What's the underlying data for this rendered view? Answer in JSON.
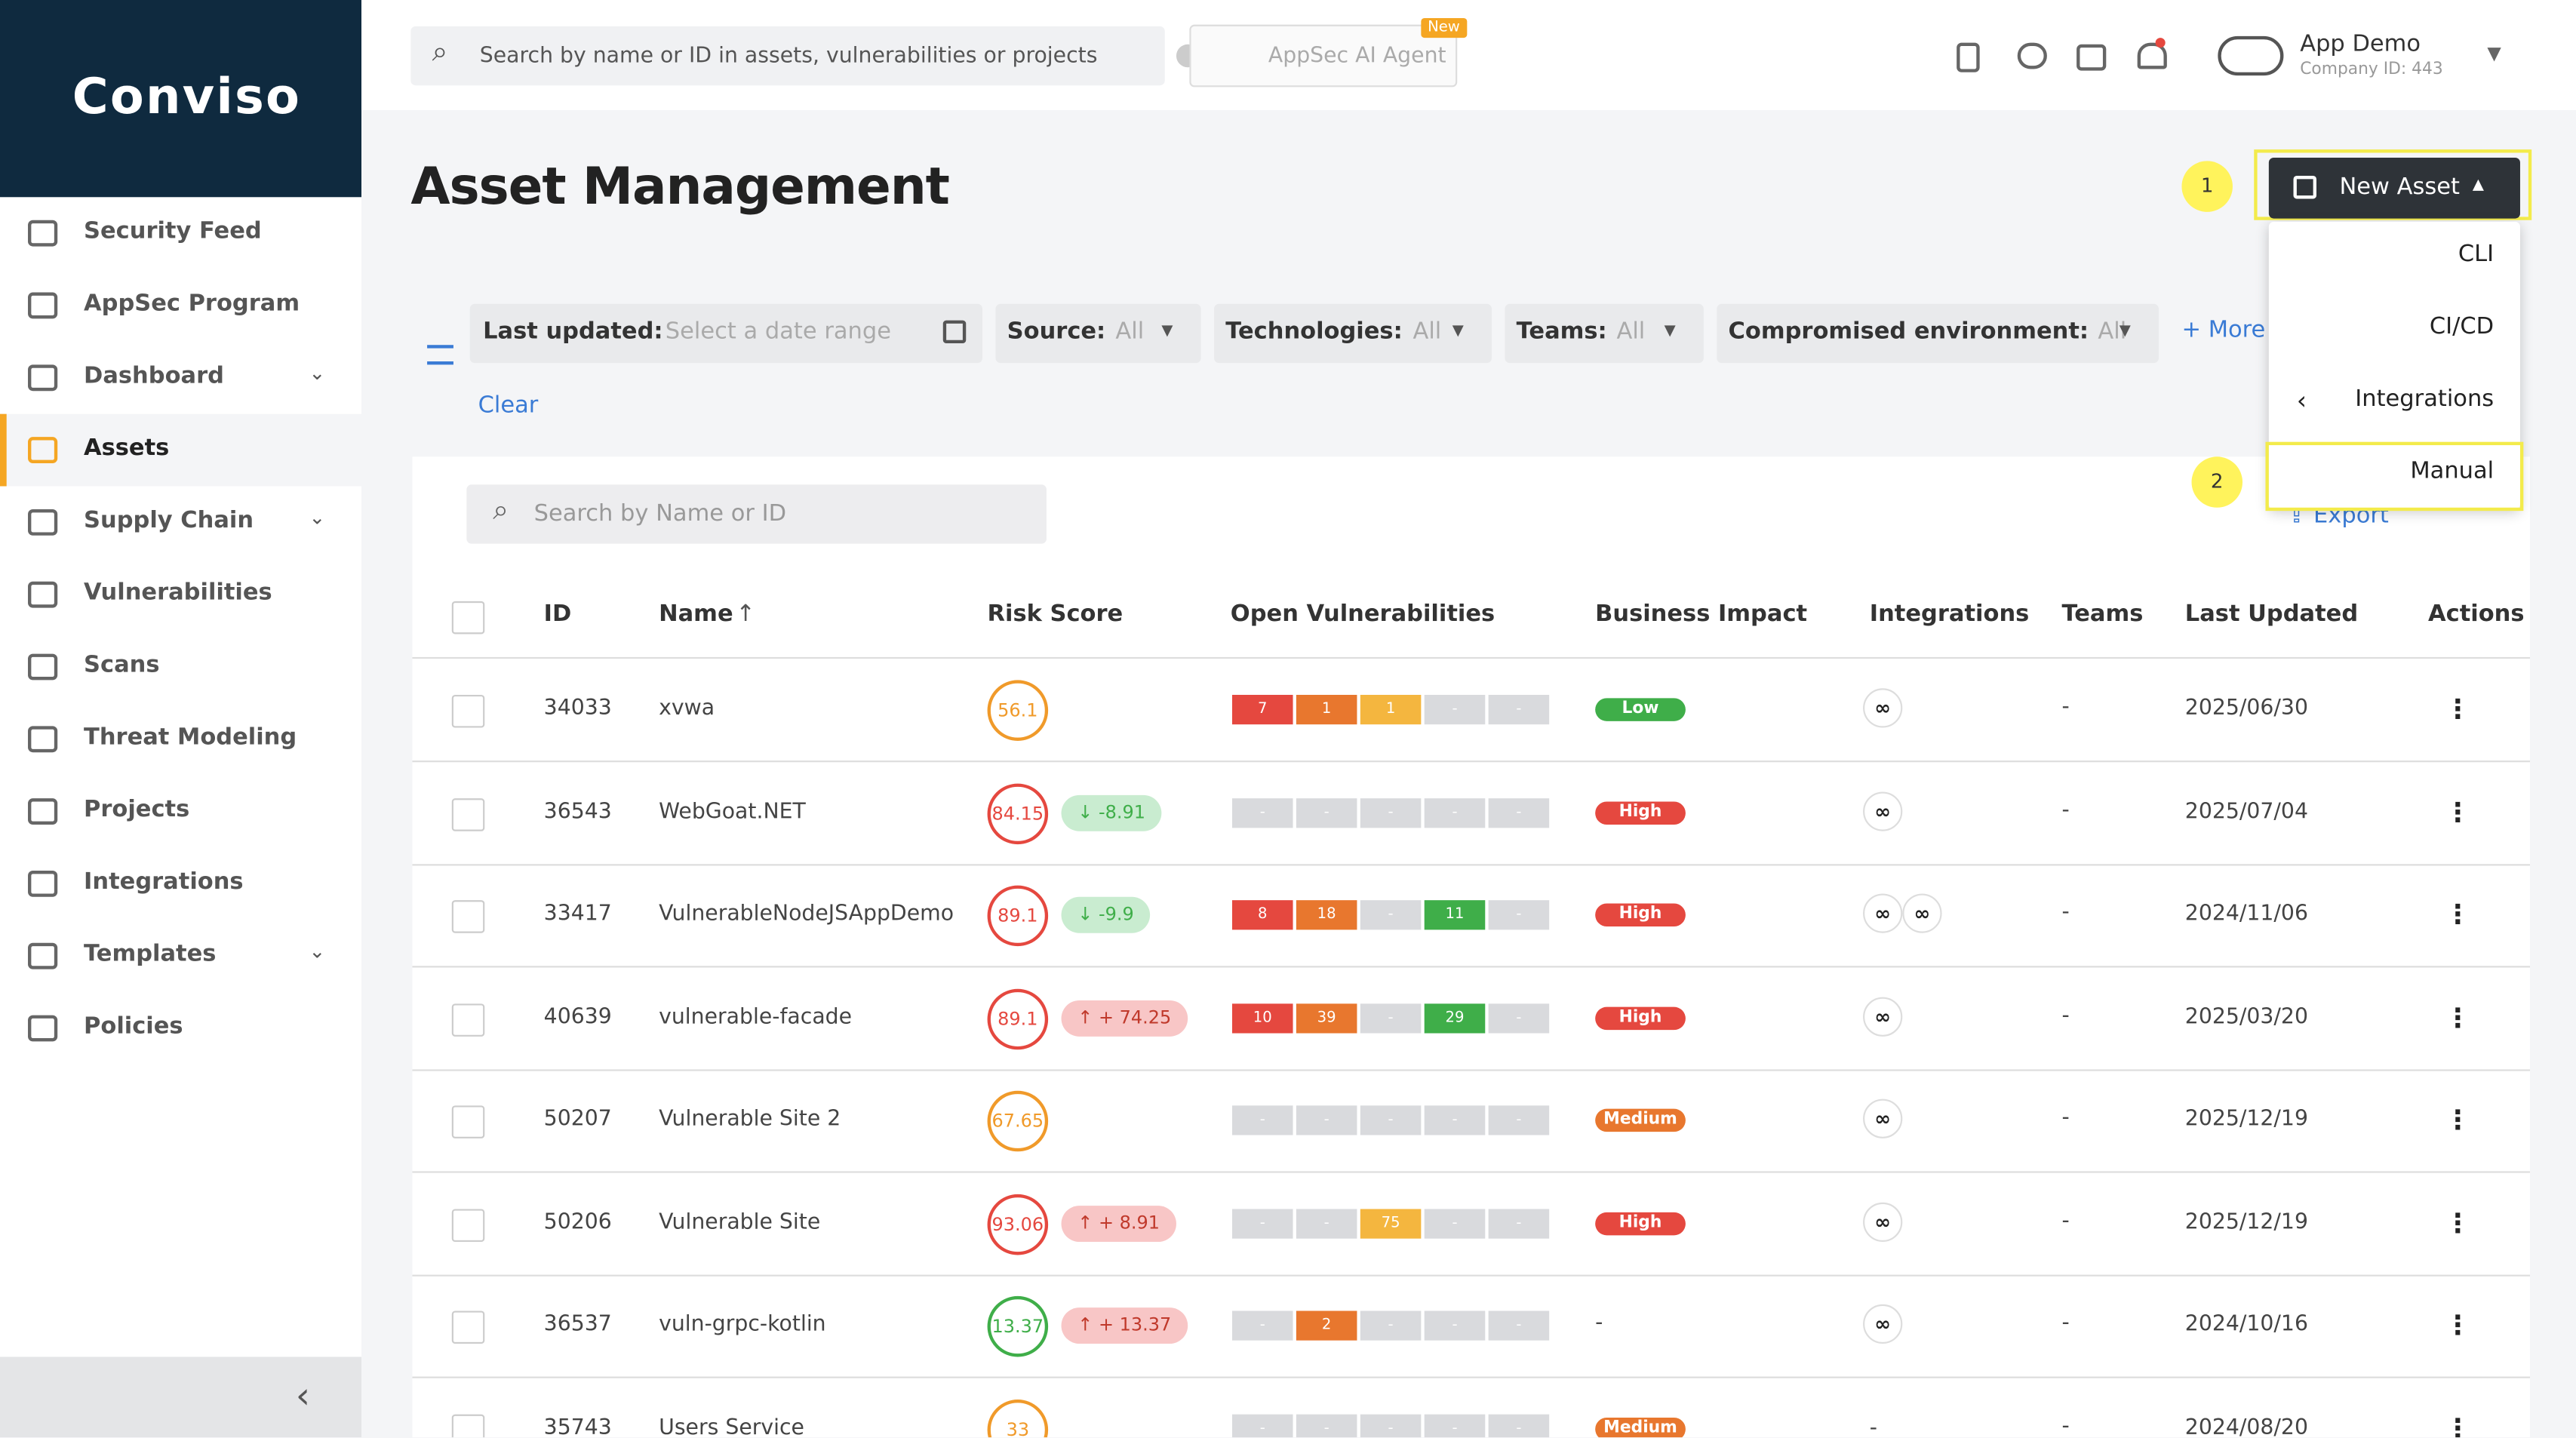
{
  "logo": "Conviso",
  "topbar": {
    "search_placeholder": "Search by name or ID in assets, vulnerabilities or projects",
    "ai_agent": "AppSec AI Agent",
    "ai_badge": "New",
    "user_name": "App Demo",
    "company": "Company ID: 443"
  },
  "sidebar": {
    "items": [
      {
        "label": "Security Feed",
        "expandable": false,
        "active": false
      },
      {
        "label": "AppSec Program",
        "expandable": false,
        "active": false
      },
      {
        "label": "Dashboard",
        "expandable": true,
        "active": false
      },
      {
        "label": "Assets",
        "expandable": false,
        "active": true
      },
      {
        "label": "Supply Chain",
        "expandable": true,
        "active": false
      },
      {
        "label": "Vulnerabilities",
        "expandable": false,
        "active": false
      },
      {
        "label": "Scans",
        "expandable": false,
        "active": false
      },
      {
        "label": "Threat Modeling",
        "expandable": false,
        "active": false
      },
      {
        "label": "Projects",
        "expandable": false,
        "active": false
      },
      {
        "label": "Integrations",
        "expandable": false,
        "active": false
      },
      {
        "label": "Templates",
        "expandable": true,
        "active": false
      },
      {
        "label": "Policies",
        "expandable": false,
        "active": false
      }
    ]
  },
  "page": {
    "title": "Asset Management",
    "new_asset": "New Asset",
    "annotation_1": "1",
    "annotation_2": "2",
    "dropdown": [
      "CLI",
      "CI/CD",
      "Integrations",
      "Manual"
    ]
  },
  "filters": {
    "last_updated": "Last updated:",
    "date_placeholder": "Select a date range",
    "selects": [
      {
        "label": "Source:",
        "value": "All"
      },
      {
        "label": "Technologies:",
        "value": "All"
      },
      {
        "label": "Teams:",
        "value": "All"
      },
      {
        "label": "Compromised environment:",
        "value": "All"
      }
    ],
    "more": "More",
    "clear": "Clear"
  },
  "table": {
    "search_placeholder": "Search by Name or ID",
    "export": "Export",
    "columns": [
      "ID",
      "Name",
      "Risk Score",
      "Open Vulnerabilities",
      "Business Impact",
      "Integrations",
      "Teams",
      "Last Updated",
      "Actions"
    ],
    "rows": [
      {
        "id": "34033",
        "name": "xvwa",
        "risk": "56.1",
        "risk_color": "#f09a2a",
        "trend": null,
        "vulns": [
          "7",
          "1",
          "1",
          "-",
          "-"
        ],
        "impact": "Low",
        "impact_color": "#3fae49",
        "integrations": 1,
        "teams": "-",
        "updated": "2025/06/30"
      },
      {
        "id": "36543",
        "name": "WebGoat.NET",
        "risk": "84.15",
        "risk_color": "#e5483f",
        "trend": {
          "label": "-8.91",
          "direction": "down"
        },
        "vulns": [
          "-",
          "-",
          "-",
          "-",
          "-"
        ],
        "impact": "High",
        "impact_color": "#e5483f",
        "integrations": 1,
        "teams": "-",
        "updated": "2025/07/04"
      },
      {
        "id": "33417",
        "name": "VulnerableNodeJSAppDemo",
        "risk": "89.1",
        "risk_color": "#e5483f",
        "trend": {
          "label": "-9.9",
          "direction": "down"
        },
        "vulns": [
          "8",
          "18",
          "-",
          "11",
          "-"
        ],
        "impact": "High",
        "impact_color": "#e5483f",
        "integrations": 2,
        "teams": "-",
        "updated": "2024/11/06"
      },
      {
        "id": "40639",
        "name": "vulnerable-facade",
        "risk": "89.1",
        "risk_color": "#e5483f",
        "trend": {
          "label": "+ 74.25",
          "direction": "up"
        },
        "vulns": [
          "10",
          "39",
          "-",
          "29",
          "-"
        ],
        "impact": "High",
        "impact_color": "#e5483f",
        "integrations": 1,
        "teams": "-",
        "updated": "2025/03/20"
      },
      {
        "id": "50207",
        "name": "Vulnerable Site 2",
        "risk": "67.65",
        "risk_color": "#f09a2a",
        "trend": null,
        "vulns": [
          "-",
          "-",
          "-",
          "-",
          "-"
        ],
        "impact": "Medium",
        "impact_color": "#e8772e",
        "integrations": 1,
        "teams": "-",
        "updated": "2025/12/19"
      },
      {
        "id": "50206",
        "name": "Vulnerable Site",
        "risk": "93.06",
        "risk_color": "#e5483f",
        "trend": {
          "label": "+ 8.91",
          "direction": "up"
        },
        "vulns": [
          "-",
          "-",
          "75",
          "-",
          "-"
        ],
        "impact": "High",
        "impact_color": "#e5483f",
        "integrations": 1,
        "teams": "-",
        "updated": "2025/12/19"
      },
      {
        "id": "36537",
        "name": "vuln-grpc-kotlin",
        "risk": "13.37",
        "risk_color": "#3fae49",
        "trend": {
          "label": "+ 13.37",
          "direction": "up"
        },
        "vulns": [
          "-",
          "2",
          "-",
          "-",
          "-"
        ],
        "impact": "-",
        "impact_color": null,
        "integrations": 1,
        "teams": "-",
        "updated": "2024/10/16"
      },
      {
        "id": "35743",
        "name": "Users Service",
        "risk": "33",
        "risk_color": "#f09a2a",
        "trend": null,
        "vulns": [
          "-",
          "-",
          "-",
          "-",
          "-"
        ],
        "impact": "Medium",
        "impact_color": "#e8772e",
        "integrations": 0,
        "integrations_label": "-",
        "teams": "-",
        "updated": "2024/08/20"
      }
    ]
  }
}
